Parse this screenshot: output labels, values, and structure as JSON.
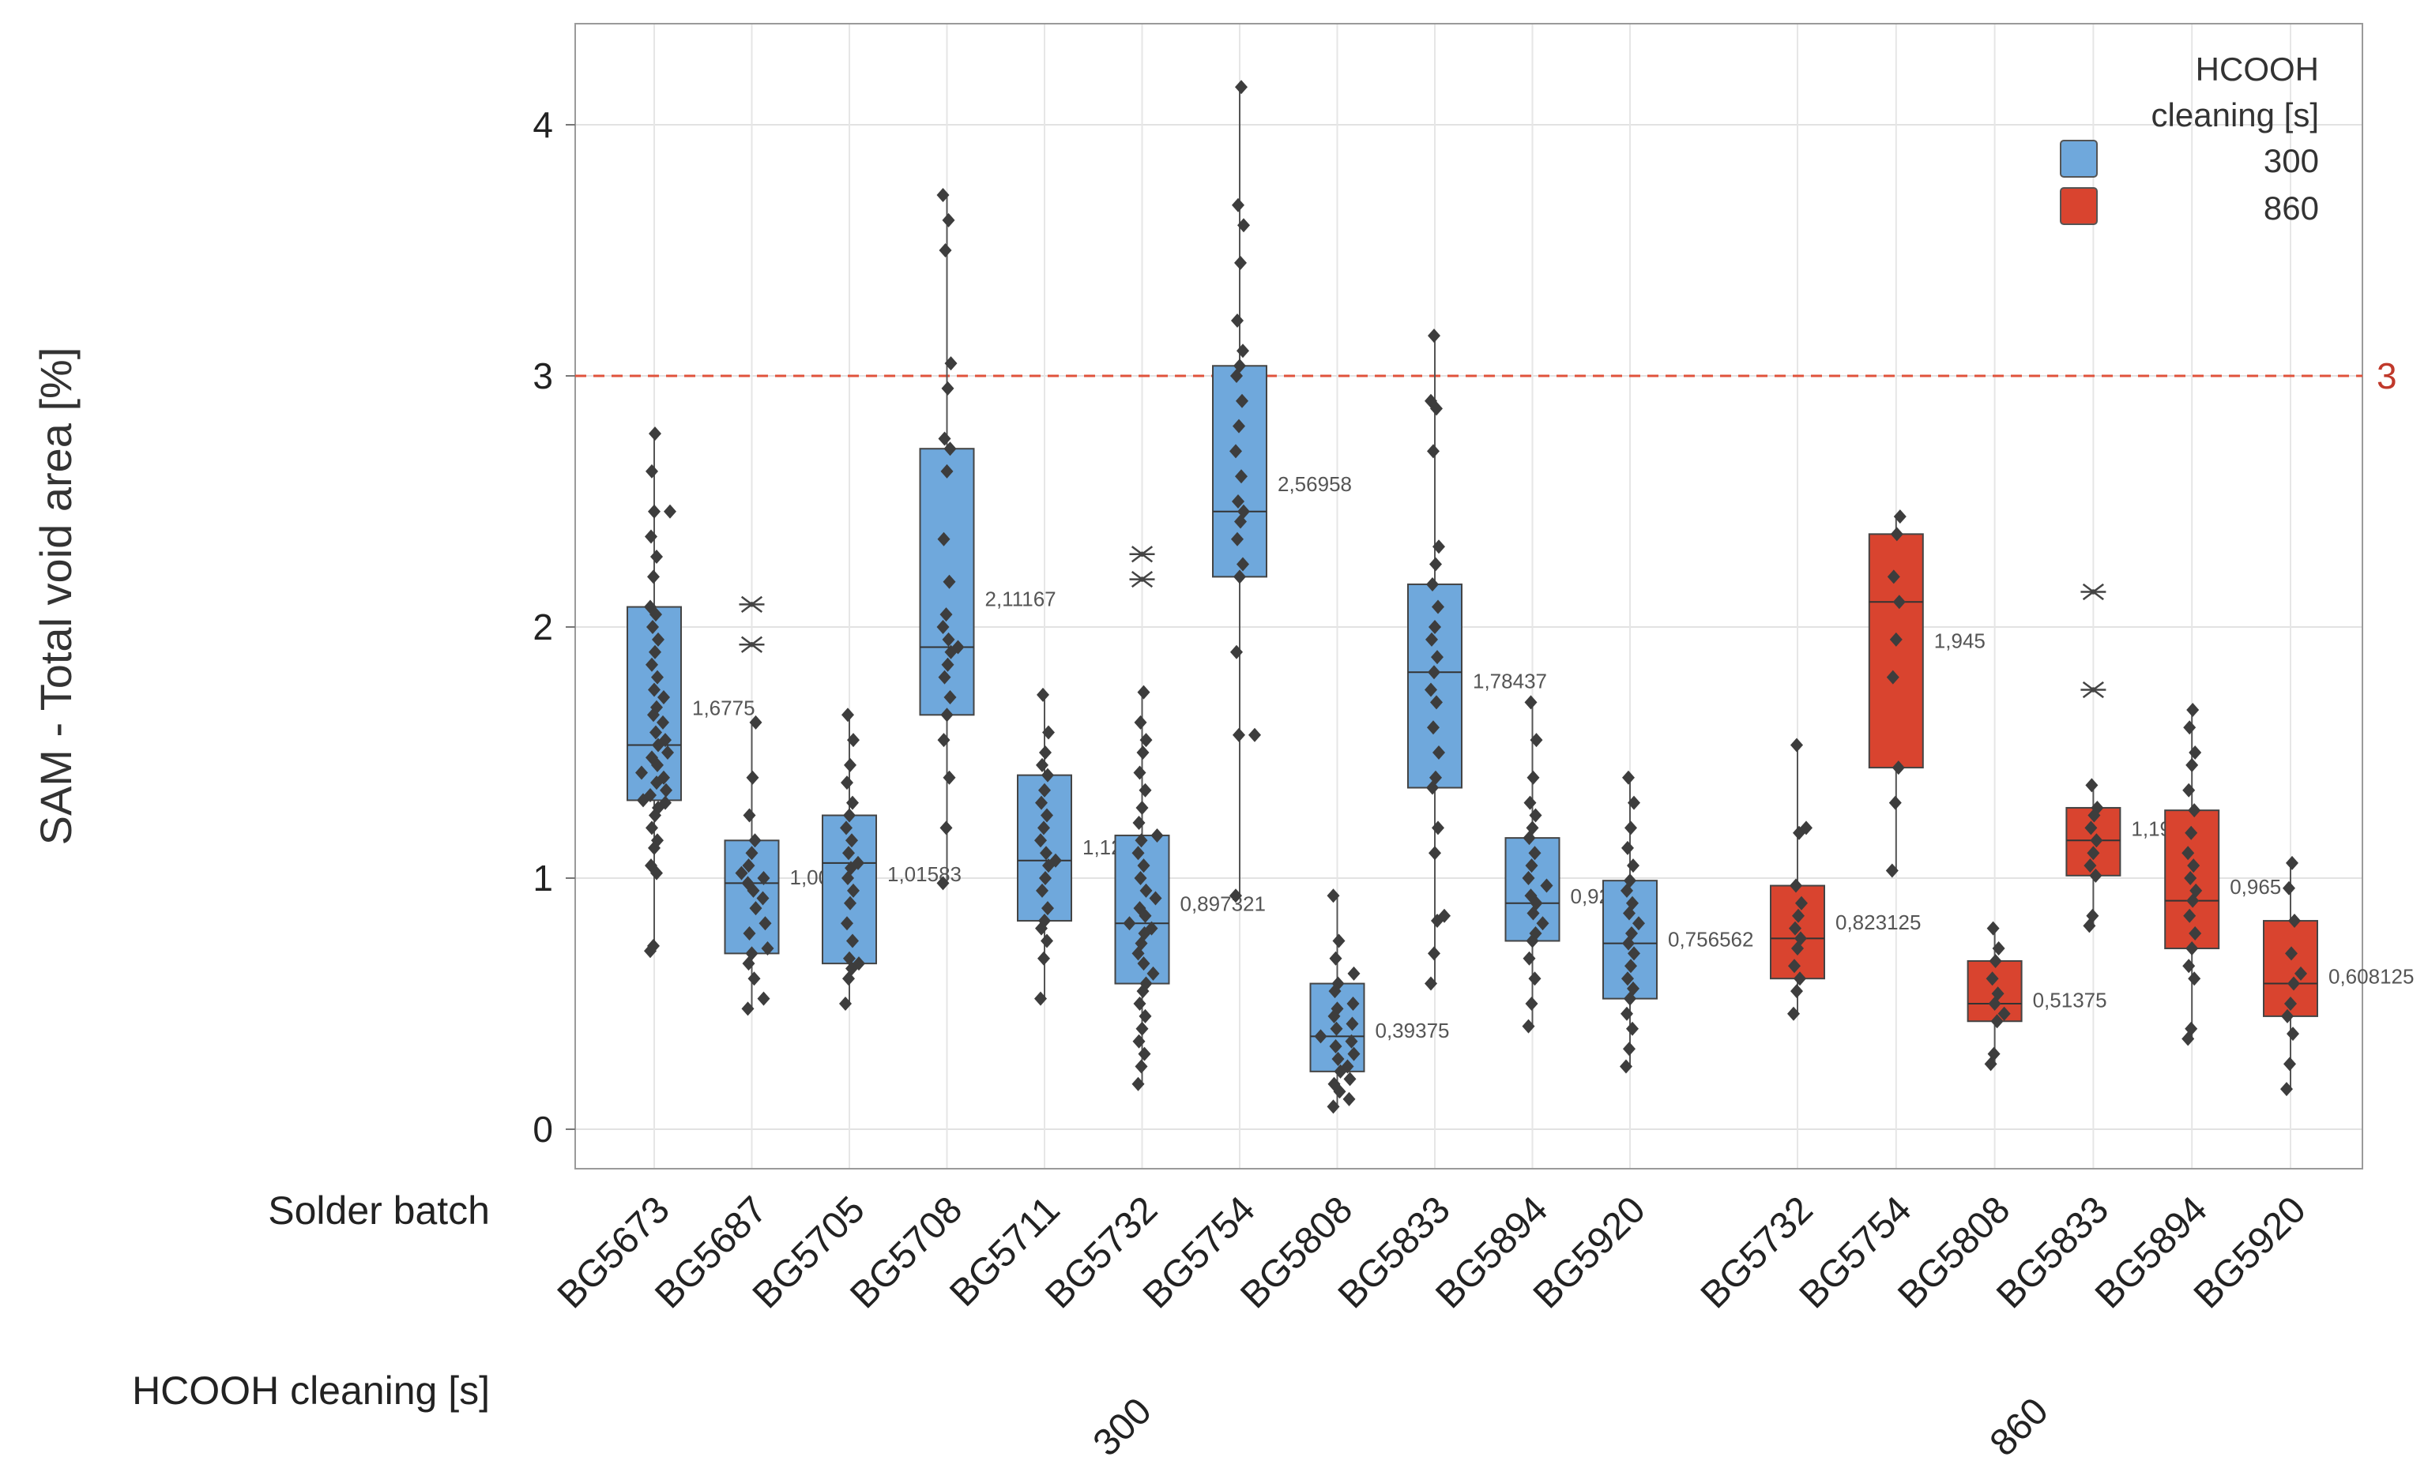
{
  "chart_data": {
    "type": "boxplot",
    "ylabel": "SAM - Total void area [%]",
    "ylim": [
      -0.15,
      4.4
    ],
    "yticks": [
      "0",
      "1",
      "2",
      "3",
      "4"
    ],
    "grid": true,
    "row_labels": {
      "batch": "Solder batch",
      "cleaning": "HCOOH cleaning [s]"
    },
    "group_labels": [
      "300",
      "860"
    ],
    "reference_line": {
      "value": 3,
      "label": "3",
      "color": "#e0533c"
    },
    "legend": {
      "title_line1": "HCOOH",
      "title_line2": "cleaning [s]",
      "placement": "top-right",
      "entries": [
        {
          "label": "300",
          "color": "#6fa8dc"
        },
        {
          "label": "860",
          "color": "#d9442f"
        }
      ]
    },
    "series": [
      {
        "batch": "BG5673",
        "cleaning": "300",
        "q1": 1.31,
        "median": 1.53,
        "q3": 2.08,
        "whisker_low": 0.71,
        "whisker_high": 2.77,
        "mean_label": "1,6775",
        "outliers": [],
        "points": [
          0.71,
          0.73,
          1.02,
          1.05,
          1.12,
          1.15,
          1.2,
          1.25,
          1.28,
          1.3,
          1.31,
          1.33,
          1.35,
          1.38,
          1.4,
          1.42,
          1.45,
          1.48,
          1.5,
          1.53,
          1.55,
          1.58,
          1.62,
          1.65,
          1.68,
          1.72,
          1.75,
          1.8,
          1.85,
          1.9,
          1.95,
          2.0,
          2.05,
          2.08,
          2.2,
          2.28,
          2.36,
          2.46,
          2.46,
          2.62,
          2.77
        ]
      },
      {
        "batch": "BG5687",
        "cleaning": "300",
        "q1": 0.7,
        "median": 0.98,
        "q3": 1.15,
        "whisker_low": 0.48,
        "whisker_high": 1.62,
        "mean_label": "1,0025",
        "outliers": [
          1.93,
          2.09
        ],
        "points": [
          0.48,
          0.52,
          0.6,
          0.66,
          0.7,
          0.72,
          0.78,
          0.82,
          0.88,
          0.92,
          0.95,
          0.98,
          1.0,
          1.02,
          1.05,
          1.1,
          1.15,
          1.25,
          1.4,
          1.62
        ]
      },
      {
        "batch": "BG5705",
        "cleaning": "300",
        "q1": 0.66,
        "median": 1.06,
        "q3": 1.25,
        "whisker_low": 0.5,
        "whisker_high": 1.65,
        "mean_label": "1,01583",
        "outliers": [],
        "points": [
          0.5,
          0.6,
          0.64,
          0.66,
          0.68,
          0.75,
          0.82,
          0.9,
          0.95,
          1.0,
          1.04,
          1.06,
          1.1,
          1.15,
          1.2,
          1.25,
          1.3,
          1.38,
          1.45,
          1.55,
          1.65
        ]
      },
      {
        "batch": "BG5708",
        "cleaning": "300",
        "q1": 1.65,
        "median": 1.92,
        "q3": 2.71,
        "whisker_low": 0.98,
        "whisker_high": 3.72,
        "mean_label": "2,11167",
        "outliers": [],
        "points": [
          0.98,
          1.2,
          1.4,
          1.55,
          1.65,
          1.72,
          1.8,
          1.85,
          1.9,
          1.92,
          1.95,
          2.0,
          2.05,
          2.18,
          2.35,
          2.62,
          2.71,
          2.75,
          2.95,
          3.05,
          3.5,
          3.62,
          3.72
        ]
      },
      {
        "batch": "BG5711",
        "cleaning": "300",
        "q1": 0.83,
        "median": 1.07,
        "q3": 1.41,
        "whisker_low": 0.52,
        "whisker_high": 1.73,
        "mean_label": "1,1225",
        "outliers": [],
        "points": [
          0.52,
          0.68,
          0.75,
          0.8,
          0.83,
          0.88,
          0.95,
          1.0,
          1.05,
          1.07,
          1.1,
          1.15,
          1.2,
          1.25,
          1.3,
          1.35,
          1.41,
          1.45,
          1.5,
          1.58,
          1.73
        ]
      },
      {
        "batch": "BG5732",
        "cleaning": "300",
        "q1": 0.58,
        "median": 0.82,
        "q3": 1.17,
        "whisker_low": 0.18,
        "whisker_high": 1.74,
        "mean_label": "0,897321",
        "outliers": [
          2.19,
          2.29
        ],
        "points": [
          0.18,
          0.25,
          0.3,
          0.35,
          0.4,
          0.45,
          0.5,
          0.55,
          0.58,
          0.62,
          0.66,
          0.7,
          0.74,
          0.78,
          0.8,
          0.82,
          0.85,
          0.88,
          0.92,
          0.95,
          1.0,
          1.05,
          1.1,
          1.15,
          1.17,
          1.22,
          1.28,
          1.35,
          1.42,
          1.5,
          1.55,
          1.62,
          1.74
        ]
      },
      {
        "batch": "BG5754",
        "cleaning": "300",
        "q1": 2.2,
        "median": 2.46,
        "q3": 3.04,
        "whisker_low": 0.93,
        "whisker_high": 4.15,
        "mean_label": "2,56958",
        "outliers": [],
        "points": [
          0.93,
          1.57,
          1.57,
          1.9,
          2.2,
          2.25,
          2.35,
          2.42,
          2.46,
          2.5,
          2.6,
          2.7,
          2.8,
          2.9,
          3.0,
          3.04,
          3.1,
          3.22,
          3.45,
          3.6,
          3.68,
          4.15
        ]
      },
      {
        "batch": "BG5808",
        "cleaning": "300",
        "q1": 0.23,
        "median": 0.37,
        "q3": 0.58,
        "whisker_low": 0.09,
        "whisker_high": 0.93,
        "mean_label": "0,39375",
        "outliers": [],
        "points": [
          0.09,
          0.12,
          0.15,
          0.18,
          0.2,
          0.23,
          0.25,
          0.28,
          0.3,
          0.33,
          0.35,
          0.37,
          0.4,
          0.42,
          0.45,
          0.48,
          0.5,
          0.55,
          0.58,
          0.62,
          0.68,
          0.75,
          0.93
        ]
      },
      {
        "batch": "BG5833",
        "cleaning": "300",
        "q1": 1.36,
        "median": 1.82,
        "q3": 2.17,
        "whisker_low": 0.58,
        "whisker_high": 3.16,
        "mean_label": "1,78437",
        "outliers": [],
        "points": [
          0.58,
          0.7,
          0.83,
          0.85,
          1.1,
          1.2,
          1.36,
          1.4,
          1.5,
          1.6,
          1.7,
          1.75,
          1.82,
          1.88,
          1.95,
          2.0,
          2.08,
          2.17,
          2.25,
          2.32,
          2.7,
          2.87,
          2.9,
          3.16
        ]
      },
      {
        "batch": "BG5894",
        "cleaning": "300",
        "q1": 0.75,
        "median": 0.9,
        "q3": 1.16,
        "whisker_low": 0.41,
        "whisker_high": 1.7,
        "mean_label": "0,928125",
        "outliers": [],
        "points": [
          0.41,
          0.5,
          0.6,
          0.68,
          0.75,
          0.78,
          0.82,
          0.86,
          0.9,
          0.93,
          0.97,
          1.0,
          1.05,
          1.1,
          1.16,
          1.2,
          1.25,
          1.3,
          1.4,
          1.55,
          1.7
        ]
      },
      {
        "batch": "BG5920",
        "cleaning": "300",
        "q1": 0.52,
        "median": 0.74,
        "q3": 0.99,
        "whisker_low": 0.25,
        "whisker_high": 1.4,
        "mean_label": "0,756562",
        "outliers": [],
        "points": [
          0.25,
          0.32,
          0.4,
          0.46,
          0.52,
          0.56,
          0.6,
          0.65,
          0.7,
          0.74,
          0.78,
          0.82,
          0.86,
          0.9,
          0.95,
          0.99,
          1.05,
          1.12,
          1.2,
          1.3,
          1.4
        ]
      },
      {
        "batch": "BG5732",
        "cleaning": "860",
        "q1": 0.6,
        "median": 0.76,
        "q3": 0.97,
        "whisker_low": 0.46,
        "whisker_high": 1.53,
        "mean_label": "0,823125",
        "outliers": [],
        "points": [
          0.46,
          0.55,
          0.6,
          0.65,
          0.72,
          0.76,
          0.8,
          0.85,
          0.9,
          0.97,
          1.18,
          1.2,
          1.53
        ]
      },
      {
        "batch": "BG5754",
        "cleaning": "860",
        "q1": 1.44,
        "median": 2.1,
        "q3": 2.37,
        "whisker_low": 1.03,
        "whisker_high": 2.44,
        "mean_label": "1,945",
        "outliers": [],
        "points": [
          1.03,
          1.3,
          1.44,
          1.8,
          1.95,
          2.1,
          2.2,
          2.37,
          2.44
        ]
      },
      {
        "batch": "BG5808",
        "cleaning": "860",
        "q1": 0.43,
        "median": 0.5,
        "q3": 0.67,
        "whisker_low": 0.26,
        "whisker_high": 0.8,
        "mean_label": "0,51375",
        "outliers": [],
        "points": [
          0.26,
          0.3,
          0.43,
          0.46,
          0.5,
          0.54,
          0.6,
          0.67,
          0.72,
          0.8
        ]
      },
      {
        "batch": "BG5833",
        "cleaning": "860",
        "q1": 1.01,
        "median": 1.15,
        "q3": 1.28,
        "whisker_low": 0.81,
        "whisker_high": 1.37,
        "mean_label": "1,19625",
        "outliers": [
          1.75,
          2.14
        ],
        "points": [
          0.81,
          0.85,
          1.01,
          1.05,
          1.1,
          1.15,
          1.2,
          1.25,
          1.28,
          1.37
        ]
      },
      {
        "batch": "BG5894",
        "cleaning": "860",
        "q1": 0.72,
        "median": 0.91,
        "q3": 1.27,
        "whisker_low": 0.36,
        "whisker_high": 1.67,
        "mean_label": "0,965",
        "outliers": [],
        "points": [
          0.36,
          0.4,
          0.6,
          0.65,
          0.72,
          0.78,
          0.85,
          0.91,
          0.95,
          1.0,
          1.05,
          1.1,
          1.18,
          1.27,
          1.35,
          1.45,
          1.5,
          1.6,
          1.67
        ]
      },
      {
        "batch": "BG5920",
        "cleaning": "860",
        "q1": 0.45,
        "median": 0.58,
        "q3": 0.83,
        "whisker_low": 0.16,
        "whisker_high": 1.06,
        "mean_label": "0,608125",
        "outliers": [],
        "points": [
          0.16,
          0.26,
          0.38,
          0.45,
          0.5,
          0.58,
          0.62,
          0.7,
          0.83,
          0.96,
          1.06
        ]
      }
    ]
  }
}
